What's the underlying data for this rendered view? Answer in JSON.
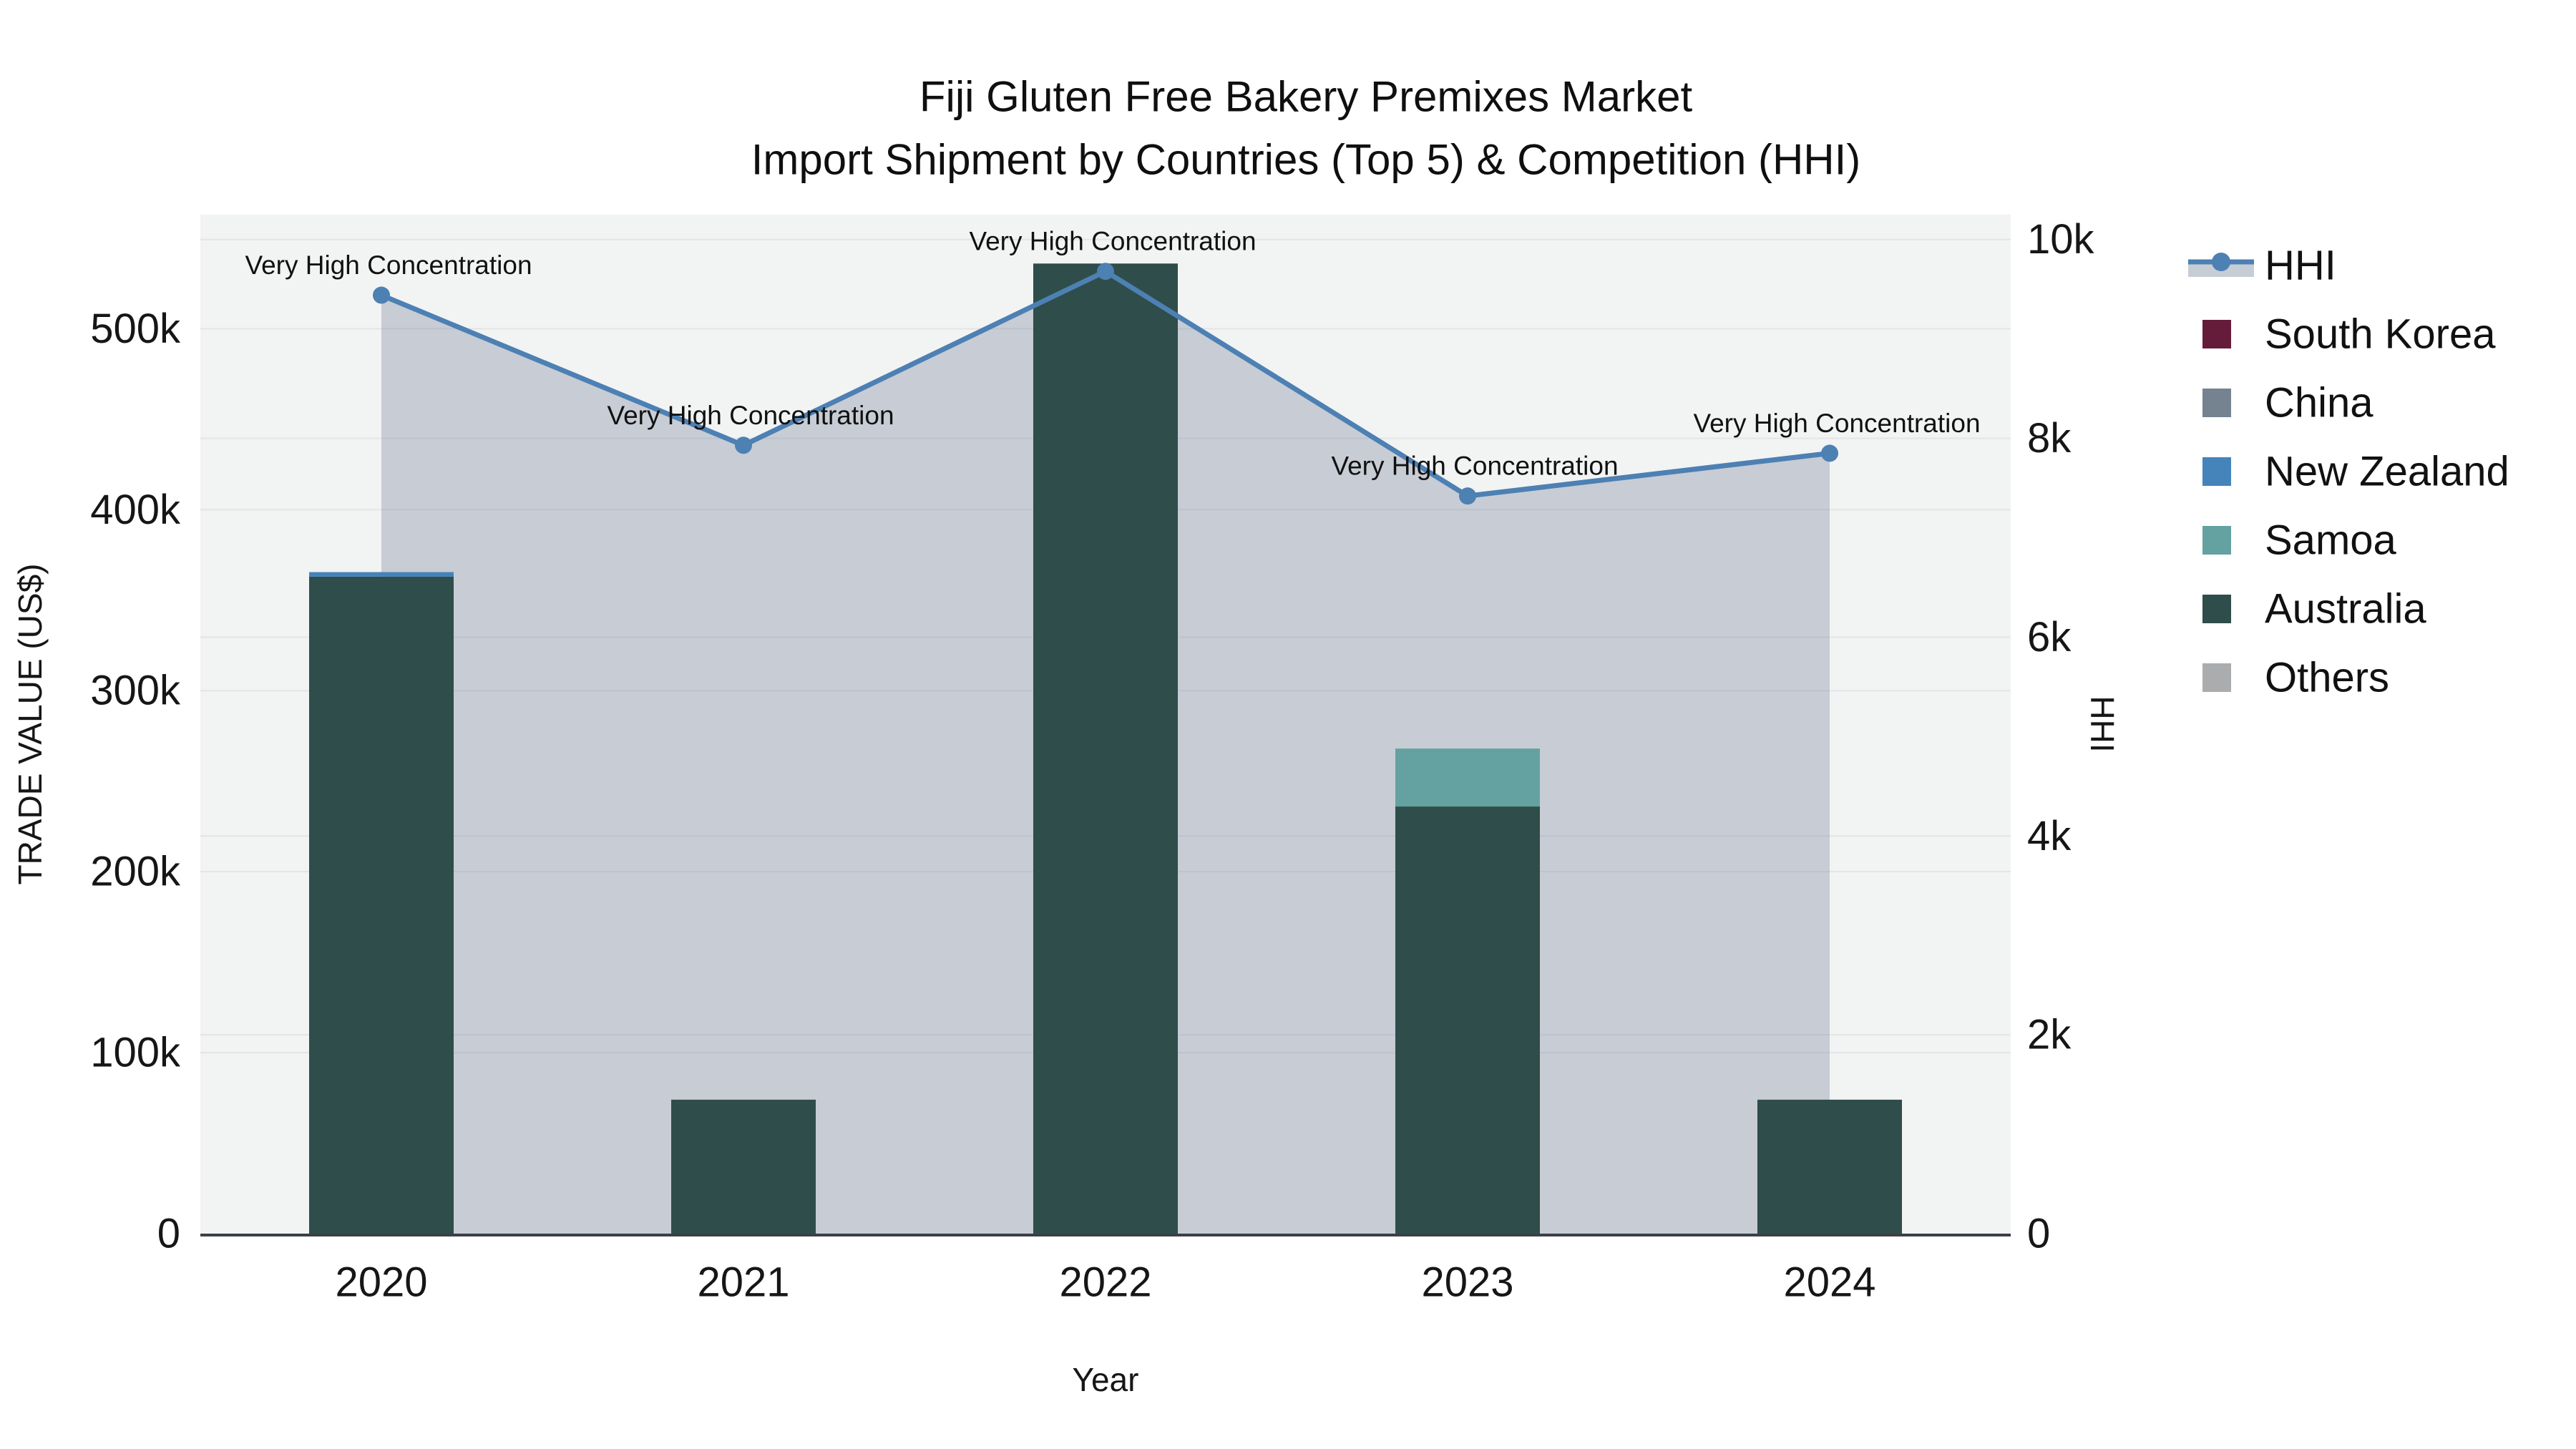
{
  "title": {
    "line1": "Fiji Gluten Free Bakery Premixes Market",
    "line2": "Import Shipment by Countries (Top 5) & Competition (HHI)"
  },
  "axes": {
    "left": {
      "title": "TRADE VALUE (US$)",
      "tick_labels": [
        "0",
        "100k",
        "200k",
        "300k",
        "400k",
        "500k"
      ]
    },
    "right": {
      "title": "HHI",
      "tick_labels": [
        "0",
        "2k",
        "4k",
        "6k",
        "8k",
        "10k"
      ]
    },
    "x": {
      "title": "Year",
      "tick_labels": [
        "2020",
        "2021",
        "2022",
        "2023",
        "2024"
      ]
    }
  },
  "annotation_text": "Very High Concentration",
  "legend": {
    "items": [
      {
        "label": "HHI",
        "type": "line",
        "color": "#4D80B3"
      },
      {
        "label": "South Korea",
        "type": "square",
        "color": "#651C3B"
      },
      {
        "label": "China",
        "type": "square",
        "color": "#75828F"
      },
      {
        "label": "New Zealand",
        "type": "square",
        "color": "#4583BB"
      },
      {
        "label": "Samoa",
        "type": "square",
        "color": "#63A2A0"
      },
      {
        "label": "Australia",
        "type": "square",
        "color": "#2F4D4A"
      },
      {
        "label": "Others",
        "type": "square",
        "color": "#AAACAD"
      }
    ]
  },
  "colors": {
    "plot_background": "#F2F3F3",
    "gridline": "#E2E4E7",
    "axis_line": "#3B4046",
    "hhi_line": "#4D80B3",
    "hhi_area_fill": "rgba(130,142,165,0.38)",
    "hhi_area_legend_swatch": "#C7CDD5"
  },
  "chart_data": {
    "type": "bar+line",
    "title": "Fiji Gluten Free Bakery Premixes Market — Import Shipment by Countries (Top 5) & Competition (HHI)",
    "categories": [
      "2020",
      "2021",
      "2022",
      "2023",
      "2024"
    ],
    "bar_series": [
      {
        "name": "Australia",
        "color": "#2F4D4A",
        "values": [
          363000,
          74000,
          536000,
          236000,
          74000
        ]
      },
      {
        "name": "Samoa",
        "color": "#63A2A0",
        "values": [
          0,
          0,
          0,
          32000,
          0
        ]
      },
      {
        "name": "New Zealand",
        "color": "#4583BB",
        "values": [
          2500,
          0,
          0,
          0,
          0
        ]
      },
      {
        "name": "China",
        "color": "#75828F",
        "values": [
          0,
          0,
          0,
          0,
          0
        ]
      },
      {
        "name": "South Korea",
        "color": "#651C3B",
        "values": [
          0,
          0,
          0,
          0,
          0
        ]
      },
      {
        "name": "Others",
        "color": "#AAACAD",
        "values": [
          0,
          0,
          0,
          0,
          0
        ]
      }
    ],
    "line_series": {
      "name": "HHI",
      "color": "#4D80B3",
      "values": [
        9440,
        7930,
        9680,
        7420,
        7850
      ],
      "area_fill": "rgba(130,142,165,0.38)"
    },
    "annotations": [
      "Very High Concentration",
      "Very High Concentration",
      "Very High Concentration",
      "Very High Concentration",
      "Very High Concentration"
    ],
    "xlabel": "Year",
    "ylabel_left": "TRADE VALUE (US$)",
    "ylabel_right": "HHI",
    "y_left": {
      "range": [
        0,
        563000
      ],
      "tick_step": 100000
    },
    "y_right": {
      "range": [
        0,
        10250
      ],
      "tick_step": 2000
    },
    "grid": true,
    "legend_position": "right",
    "legend_order": [
      "HHI",
      "South Korea",
      "China",
      "New Zealand",
      "Samoa",
      "Australia",
      "Others"
    ]
  }
}
